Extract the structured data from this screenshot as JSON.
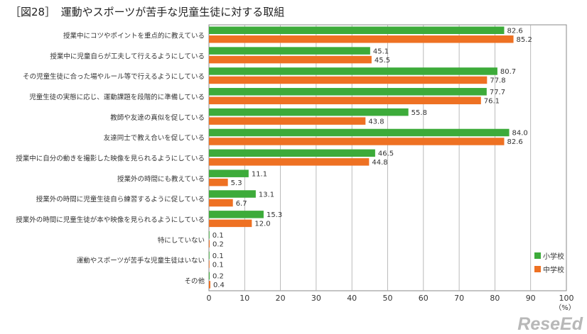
{
  "chart_data": {
    "type": "bar",
    "orientation": "horizontal",
    "title": "［図28］　運動やスポーツが苦手な児童生徒に対する取組",
    "categories": [
      "授業中にコツやポイントを重点的に教えている",
      "授業中に児童自らが工夫して行えるようにしている",
      "その児童生徒に合った場やルール等で行えるようにしている",
      "児童生徒の実態に応じ、運動課題を段階的に準備している",
      "教師や友達の真似を促している",
      "友達同士で教え合いを促している",
      "授業中に自分の動きを撮影した映像を見られるようにしている",
      "授業外の時間にも教えている",
      "授業外の時間に児童生徒自ら練習するように促している",
      "授業外の時間に児童生徒が本や映像を見られるようにしている",
      "特にしていない",
      "運動やスポーツが苦手な児童生徒はいない",
      "その他"
    ],
    "series": [
      {
        "name": "小学校",
        "color": "#3dab3a",
        "values": [
          82.6,
          45.1,
          80.7,
          77.7,
          55.8,
          84.0,
          46.5,
          11.1,
          13.1,
          15.3,
          0.1,
          0.1,
          0.2
        ]
      },
      {
        "name": "中学校",
        "color": "#ee7123",
        "values": [
          85.2,
          45.5,
          77.8,
          76.1,
          43.8,
          82.6,
          44.8,
          5.3,
          6.7,
          12.0,
          0.2,
          0.1,
          0.4
        ]
      }
    ],
    "xlim": [
      0,
      100
    ],
    "xticks": [
      "0",
      "10",
      "20",
      "30",
      "40",
      "50",
      "60",
      "70",
      "80",
      "90",
      "100"
    ],
    "xunit": "（%）",
    "grid": true,
    "legend": "bottom-right"
  },
  "watermark": "ReseEd"
}
